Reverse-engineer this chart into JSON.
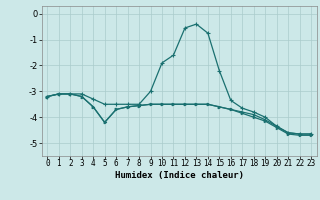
{
  "x": [
    0,
    1,
    2,
    3,
    4,
    5,
    6,
    7,
    8,
    9,
    10,
    11,
    12,
    13,
    14,
    15,
    16,
    17,
    18,
    19,
    20,
    21,
    22,
    23
  ],
  "line1": [
    -3.2,
    -3.1,
    -3.1,
    -3.1,
    -3.3,
    -3.5,
    -3.5,
    -3.5,
    -3.5,
    -3.0,
    -1.9,
    -1.6,
    -0.55,
    -0.4,
    -0.75,
    -2.2,
    -3.35,
    -3.65,
    -3.8,
    -4.0,
    -4.35,
    -4.6,
    -4.65,
    -4.65
  ],
  "line2": [
    -3.2,
    -3.1,
    -3.1,
    -3.2,
    -3.6,
    -4.2,
    -3.7,
    -3.6,
    -3.55,
    -3.5,
    -3.5,
    -3.5,
    -3.5,
    -3.5,
    -3.5,
    -3.6,
    -3.7,
    -3.8,
    -3.9,
    -4.1,
    -4.35,
    -4.6,
    -4.65,
    -4.65
  ],
  "line3": [
    -3.2,
    -3.1,
    -3.1,
    -3.2,
    -3.6,
    -4.2,
    -3.7,
    -3.6,
    -3.55,
    -3.5,
    -3.5,
    -3.5,
    -3.5,
    -3.5,
    -3.5,
    -3.6,
    -3.7,
    -3.85,
    -4.0,
    -4.15,
    -4.4,
    -4.65,
    -4.7,
    -4.7
  ],
  "bg_color": "#cce8e8",
  "grid_color": "#aacccc",
  "line_color": "#1a7070",
  "xlabel": "Humidex (Indice chaleur)",
  "ylim": [
    -5.5,
    0.3
  ],
  "xlim": [
    -0.5,
    23.5
  ],
  "yticks": [
    0,
    -1,
    -2,
    -3,
    -4,
    -5
  ],
  "xticks": [
    0,
    1,
    2,
    3,
    4,
    5,
    6,
    7,
    8,
    9,
    10,
    11,
    12,
    13,
    14,
    15,
    16,
    17,
    18,
    19,
    20,
    21,
    22,
    23
  ],
  "xlabel_fontsize": 6.5,
  "tick_fontsize": 5.5,
  "ytick_fontsize": 6.0
}
